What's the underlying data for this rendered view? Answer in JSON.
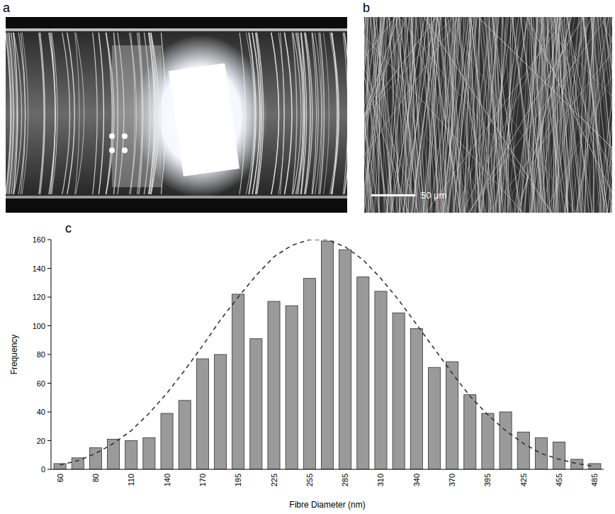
{
  "figure": {
    "panel_labels": [
      "a",
      "b",
      "c"
    ],
    "scale_bar_label": "50 μm"
  },
  "chart_data": {
    "type": "bar",
    "xlabel": "Fibre Diameter (nm)",
    "ylabel": "Frequency",
    "categories": [
      "60",
      null,
      "80",
      null,
      "110",
      null,
      "140",
      null,
      "170",
      null,
      "195",
      null,
      "225",
      null,
      "255",
      null,
      "285",
      null,
      "310",
      null,
      "340",
      null,
      "370",
      null,
      "395",
      null,
      "425",
      null,
      "455",
      null,
      "485"
    ],
    "series": [
      {
        "type": "bar",
        "color": "#9a9a9a",
        "values": [
          4,
          8,
          15,
          21,
          20,
          22,
          39,
          48,
          77,
          80,
          122,
          91,
          117,
          114,
          133,
          159,
          153,
          134,
          124,
          109,
          98,
          71,
          75,
          52,
          39,
          40,
          26,
          22,
          19,
          7,
          4
        ]
      },
      {
        "type": "line",
        "color": "#333333",
        "line_style": "dashed",
        "values": [
          3,
          6,
          11,
          18,
          27,
          39,
          53,
          69,
          86,
          104,
          120,
          135,
          148,
          156,
          160,
          160,
          155,
          146,
          133,
          118,
          101,
          84,
          67,
          51,
          38,
          27,
          18,
          11,
          7,
          4,
          2
        ]
      }
    ],
    "ylim": [
      0,
      160
    ],
    "yticks": [
      0,
      20,
      40,
      60,
      80,
      100,
      120,
      140,
      160
    ],
    "grid": false
  }
}
